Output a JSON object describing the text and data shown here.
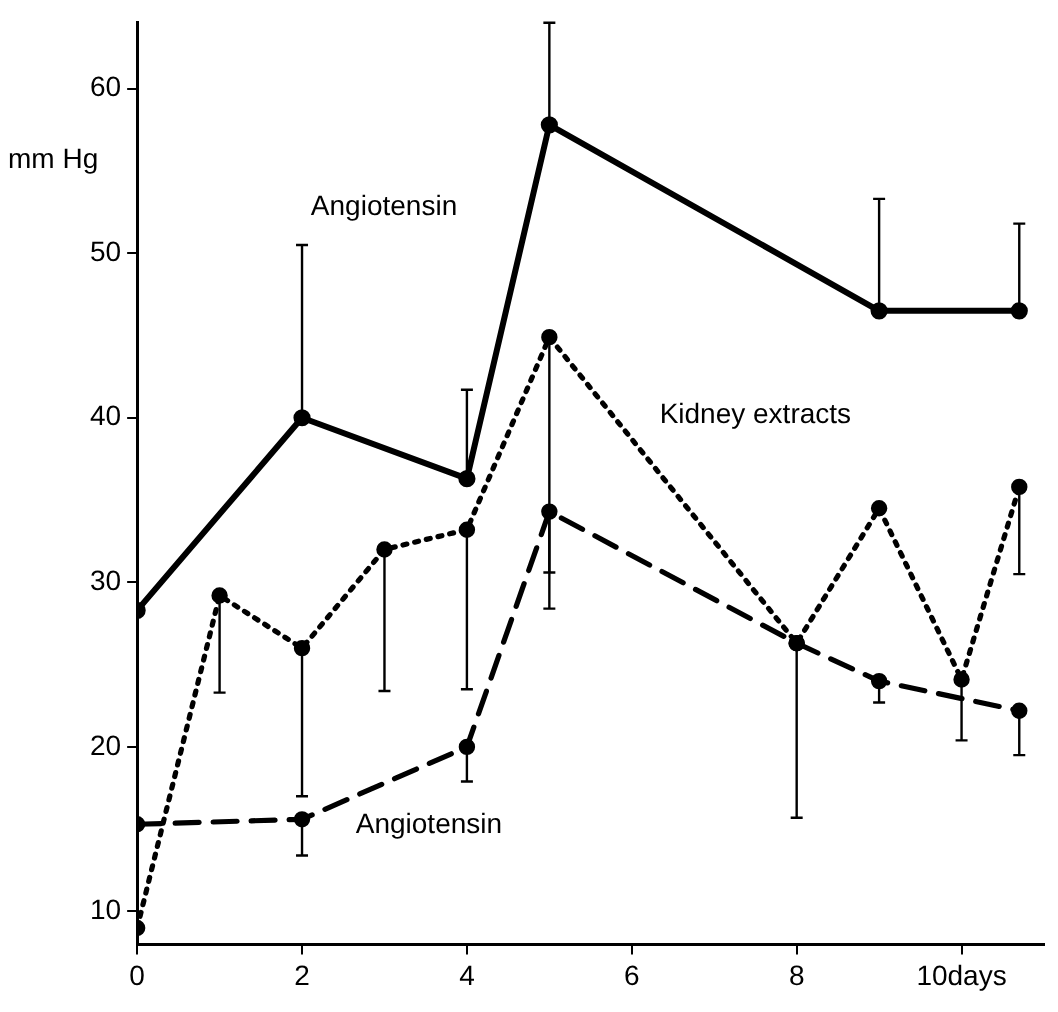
{
  "chart_data": {
    "type": "line",
    "ylabel": "mm Hg",
    "xlim": [
      0,
      11
    ],
    "ylim": [
      8,
      64
    ],
    "xticks": [
      0,
      2,
      4,
      6,
      8,
      {
        "value": 10,
        "label": "10days"
      }
    ],
    "yticks": [
      10,
      20,
      30,
      40,
      50,
      60
    ],
    "grid": false,
    "legend": false,
    "marker": "circle",
    "series": [
      {
        "name": "Angiotensin",
        "color": "#000000",
        "line_style": "solid",
        "x": [
          0,
          2,
          4,
          5,
          9,
          10.7
        ],
        "values": [
          28.3,
          40,
          36.3,
          57.8,
          46.5,
          46.5
        ],
        "errors": [
          null,
          [
            40,
            50.5
          ],
          [
            36.3,
            41.7
          ],
          [
            57.8,
            64
          ],
          [
            46.5,
            53.3
          ],
          [
            46.5,
            51.8
          ]
        ]
      },
      {
        "name": "Kidney extracts",
        "color": "#000000",
        "line_style": "dotted",
        "x": [
          0,
          1,
          2,
          3,
          4,
          5,
          8,
          9,
          10,
          10.7
        ],
        "values": [
          9,
          29.2,
          26,
          32,
          33.2,
          44.9,
          26.3,
          34.5,
          24.1,
          35.8
        ],
        "errors": [
          null,
          [
            23.3,
            29.2
          ],
          [
            17,
            26
          ],
          [
            23.4,
            32
          ],
          [
            23.5,
            33.2
          ],
          [
            30.6,
            44.9
          ],
          null,
          null,
          [
            20.4,
            24.1
          ],
          [
            30.5,
            35.8
          ]
        ]
      },
      {
        "name": "Angiotensin",
        "color": "#000000",
        "line_style": "dashed",
        "x": [
          0,
          2,
          4,
          5,
          8,
          9,
          10.7
        ],
        "values": [
          15.3,
          15.6,
          20,
          34.3,
          26.3,
          24,
          22.2
        ],
        "errors": [
          null,
          [
            13.4,
            15.6
          ],
          [
            17.9,
            20
          ],
          [
            28.4,
            34.3
          ],
          [
            15.7,
            26.3
          ],
          [
            22.7,
            24
          ],
          [
            19.5,
            22.2
          ]
        ]
      }
    ]
  }
}
